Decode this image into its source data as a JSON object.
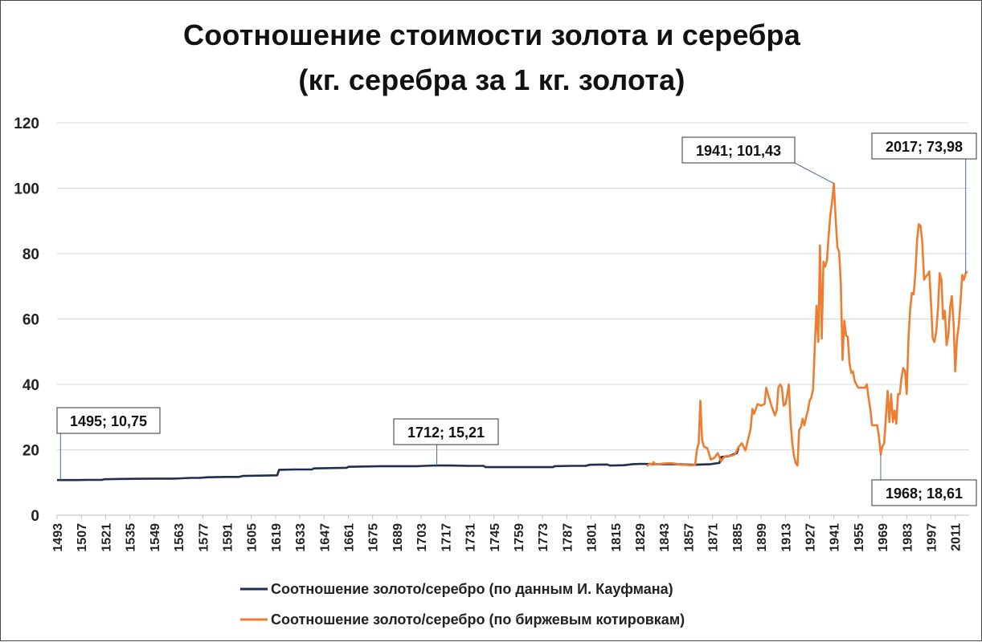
{
  "chart_data": {
    "type": "line",
    "title_line1": "Соотношение стоимости золота и серебра",
    "title_line2": "(кг. серебра за 1 кг. золота)",
    "xlabel": "",
    "ylabel": "",
    "xlim": [
      1493,
      2019
    ],
    "ylim": [
      0,
      120
    ],
    "y_ticks": [
      0,
      20,
      40,
      60,
      80,
      100,
      120
    ],
    "x_tick_labels": [
      "1493",
      "1507",
      "1521",
      "1535",
      "1549",
      "1563",
      "1577",
      "1591",
      "1605",
      "1619",
      "1633",
      "1647",
      "1661",
      "1675",
      "1689",
      "1703",
      "1717",
      "1731",
      "1745",
      "1759",
      "1773",
      "1787",
      "1801",
      "1815",
      "1829",
      "1843",
      "1857",
      "1871",
      "1885",
      "1899",
      "1913",
      "1927",
      "1941",
      "1955",
      "1969",
      "1983",
      "1997",
      "2011"
    ],
    "grid": "horizontal",
    "legend_position": "bottom",
    "series": [
      {
        "name": "Соотношение золото/серебро (по данным И. Кауфмана)",
        "color": "#1f2f4f",
        "points": [
          [
            1493,
            10.75
          ],
          [
            1495,
            10.75
          ],
          [
            1500,
            10.75
          ],
          [
            1505,
            10.75
          ],
          [
            1510,
            10.8
          ],
          [
            1515,
            10.8
          ],
          [
            1519,
            10.8
          ],
          [
            1520,
            11.0
          ],
          [
            1530,
            11.1
          ],
          [
            1540,
            11.15
          ],
          [
            1550,
            11.2
          ],
          [
            1560,
            11.2
          ],
          [
            1565,
            11.3
          ],
          [
            1570,
            11.4
          ],
          [
            1575,
            11.4
          ],
          [
            1580,
            11.6
          ],
          [
            1590,
            11.7
          ],
          [
            1598,
            11.7
          ],
          [
            1600,
            12.0
          ],
          [
            1610,
            12.1
          ],
          [
            1620,
            12.2
          ],
          [
            1621,
            13.9
          ],
          [
            1630,
            14.0
          ],
          [
            1640,
            14.0
          ],
          [
            1641,
            14.3
          ],
          [
            1650,
            14.4
          ],
          [
            1660,
            14.5
          ],
          [
            1661,
            14.8
          ],
          [
            1670,
            14.9
          ],
          [
            1680,
            15.0
          ],
          [
            1690,
            15.0
          ],
          [
            1700,
            15.0
          ],
          [
            1705,
            15.1
          ],
          [
            1712,
            15.21
          ],
          [
            1720,
            15.2
          ],
          [
            1730,
            15.1
          ],
          [
            1739,
            15.1
          ],
          [
            1740,
            14.7
          ],
          [
            1750,
            14.7
          ],
          [
            1760,
            14.7
          ],
          [
            1770,
            14.7
          ],
          [
            1779,
            14.7
          ],
          [
            1780,
            15.0
          ],
          [
            1790,
            15.1
          ],
          [
            1798,
            15.1
          ],
          [
            1800,
            15.4
          ],
          [
            1810,
            15.5
          ],
          [
            1812,
            15.2
          ],
          [
            1820,
            15.3
          ],
          [
            1825,
            15.6
          ],
          [
            1830,
            15.7
          ],
          [
            1840,
            15.6
          ],
          [
            1850,
            15.6
          ],
          [
            1860,
            15.4
          ],
          [
            1870,
            15.6
          ],
          [
            1875,
            16.0
          ],
          [
            1876,
            17.8
          ],
          [
            1880,
            18.0
          ],
          [
            1885,
            19.0
          ],
          [
            1886,
            20.5
          ]
        ]
      },
      {
        "name": "Соотношение золото/серебро (по биржевым котировкам)",
        "color": "#ed7d31",
        "points": [
          [
            1833,
            15.0
          ],
          [
            1835,
            15.8
          ],
          [
            1836,
            15.4
          ],
          [
            1837,
            16.2
          ],
          [
            1838,
            15.6
          ],
          [
            1840,
            15.6
          ],
          [
            1843,
            15.8
          ],
          [
            1846,
            15.9
          ],
          [
            1849,
            15.8
          ],
          [
            1851,
            15.6
          ],
          [
            1852,
            15.4
          ],
          [
            1855,
            15.4
          ],
          [
            1858,
            15.3
          ],
          [
            1860,
            15.3
          ],
          [
            1861,
            15.5
          ],
          [
            1862,
            20.0
          ],
          [
            1863,
            22.0
          ],
          [
            1864,
            35.0
          ],
          [
            1865,
            23.0
          ],
          [
            1866,
            21.0
          ],
          [
            1868,
            20.5
          ],
          [
            1870,
            17.0
          ],
          [
            1872,
            17.5
          ],
          [
            1874,
            19.0
          ],
          [
            1876,
            16.5
          ],
          [
            1878,
            18.0
          ],
          [
            1880,
            18.1
          ],
          [
            1882,
            18.2
          ],
          [
            1884,
            18.6
          ],
          [
            1886,
            20.8
          ],
          [
            1888,
            22.0
          ],
          [
            1890,
            19.8
          ],
          [
            1891,
            22.0
          ],
          [
            1893,
            26.5
          ],
          [
            1894,
            32.5
          ],
          [
            1895,
            31.0
          ],
          [
            1897,
            34.0
          ],
          [
            1899,
            33.5
          ],
          [
            1901,
            34.0
          ],
          [
            1902,
            39.0
          ],
          [
            1903,
            37.0
          ],
          [
            1905,
            33.5
          ],
          [
            1907,
            30.5
          ],
          [
            1908,
            32.0
          ],
          [
            1909,
            39.0
          ],
          [
            1910,
            40.0
          ],
          [
            1911,
            39.0
          ],
          [
            1912,
            33.5
          ],
          [
            1913,
            34.0
          ],
          [
            1914,
            36.5
          ],
          [
            1915,
            40.0
          ],
          [
            1916,
            29.0
          ],
          [
            1917,
            22.0
          ],
          [
            1918,
            18.0
          ],
          [
            1919,
            16.0
          ],
          [
            1920,
            15.2
          ],
          [
            1921,
            26.0
          ],
          [
            1922,
            27.0
          ],
          [
            1923,
            29.5
          ],
          [
            1924,
            27.5
          ],
          [
            1925,
            30.0
          ],
          [
            1926,
            32.0
          ],
          [
            1927,
            35.0
          ],
          [
            1928,
            36.0
          ],
          [
            1929,
            38.5
          ],
          [
            1930,
            52.0
          ],
          [
            1931,
            64.0
          ],
          [
            1932,
            53.0
          ],
          [
            1933,
            82.5
          ],
          [
            1934,
            54.0
          ],
          [
            1935,
            77.5
          ],
          [
            1936,
            76.0
          ],
          [
            1937,
            78.0
          ],
          [
            1938,
            85.5
          ],
          [
            1939,
            92.0
          ],
          [
            1940,
            96.0
          ],
          [
            1941,
            101.43
          ],
          [
            1942,
            91.0
          ],
          [
            1943,
            82.0
          ],
          [
            1944,
            80.5
          ],
          [
            1945,
            71.0
          ],
          [
            1946,
            47.5
          ],
          [
            1947,
            59.5
          ],
          [
            1948,
            55.0
          ],
          [
            1949,
            54.5
          ],
          [
            1950,
            46.5
          ],
          [
            1951,
            43.5
          ],
          [
            1952,
            44.0
          ],
          [
            1953,
            41.0
          ],
          [
            1954,
            40.0
          ],
          [
            1955,
            39.0
          ],
          [
            1957,
            39.0
          ],
          [
            1959,
            39.0
          ],
          [
            1960,
            40.0
          ],
          [
            1961,
            36.0
          ],
          [
            1962,
            32.5
          ],
          [
            1963,
            27.5
          ],
          [
            1964,
            27.5
          ],
          [
            1965,
            27.5
          ],
          [
            1966,
            27.5
          ],
          [
            1967,
            24.0
          ],
          [
            1968,
            18.61
          ],
          [
            1969,
            21.0
          ],
          [
            1970,
            22.0
          ],
          [
            1971,
            30.0
          ],
          [
            1972,
            38.0
          ],
          [
            1973,
            28.5
          ],
          [
            1974,
            37.0
          ],
          [
            1975,
            28.5
          ],
          [
            1976,
            32.0
          ],
          [
            1977,
            28.0
          ],
          [
            1978,
            37.0
          ],
          [
            1979,
            37.0
          ],
          [
            1980,
            42.0
          ],
          [
            1981,
            45.0
          ],
          [
            1982,
            44.0
          ],
          [
            1983,
            37.0
          ],
          [
            1984,
            54.0
          ],
          [
            1985,
            63.0
          ],
          [
            1986,
            68.0
          ],
          [
            1987,
            67.5
          ],
          [
            1988,
            74.0
          ],
          [
            1989,
            84.5
          ],
          [
            1990,
            89.0
          ],
          [
            1991,
            88.5
          ],
          [
            1992,
            83.5
          ],
          [
            1993,
            72.0
          ],
          [
            1994,
            73.0
          ],
          [
            1995,
            73.5
          ],
          [
            1996,
            74.5
          ],
          [
            1997,
            65.0
          ],
          [
            1998,
            54.0
          ],
          [
            1999,
            53.0
          ],
          [
            2000,
            56.0
          ],
          [
            2001,
            63.0
          ],
          [
            2002,
            74.0
          ],
          [
            2003,
            72.0
          ],
          [
            2004,
            60.0
          ],
          [
            2005,
            62.5
          ],
          [
            2006,
            52.0
          ],
          [
            2007,
            55.0
          ],
          [
            2008,
            63.5
          ],
          [
            2009,
            67.0
          ],
          [
            2010,
            59.0
          ],
          [
            2011,
            44.0
          ],
          [
            2012,
            54.0
          ],
          [
            2013,
            58.0
          ],
          [
            2014,
            65.0
          ],
          [
            2015,
            73.5
          ],
          [
            2016,
            72.0
          ],
          [
            2017,
            73.98
          ],
          [
            2018,
            74.5
          ]
        ]
      }
    ],
    "annotations": [
      {
        "text": "1495;  10,75",
        "x": 1495,
        "y": 10.75
      },
      {
        "text": "1712;  15,21",
        "x": 1712,
        "y": 15.21
      },
      {
        "text": "1941;  101,43",
        "x": 1941,
        "y": 101.43
      },
      {
        "text": "2017;  73,98",
        "x": 2017,
        "y": 73.98
      },
      {
        "text": "1968;  18,61",
        "x": 1968,
        "y": 18.61
      }
    ]
  }
}
